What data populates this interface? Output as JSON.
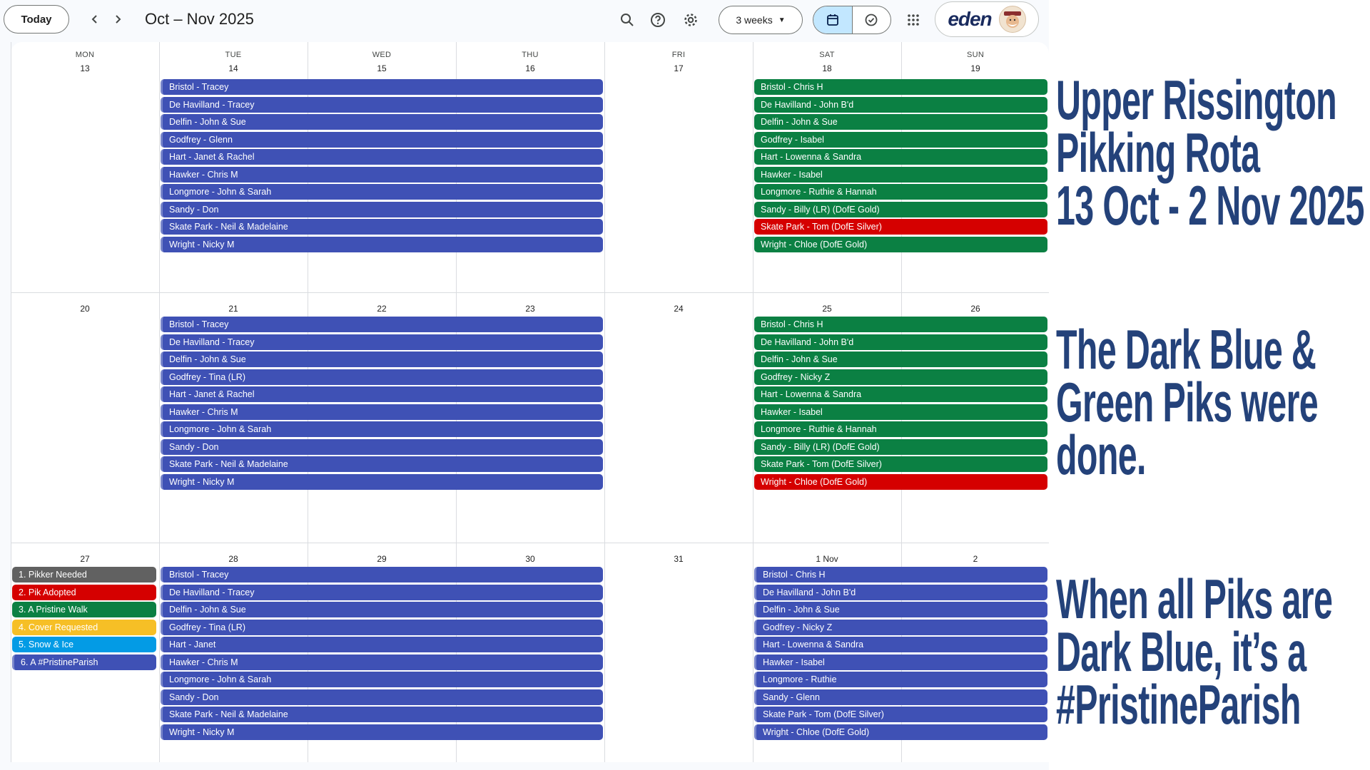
{
  "toolbar": {
    "today": "Today",
    "prev": "‹",
    "next": "›",
    "range": "Oct – Nov 2025",
    "view": "3 weeks",
    "account_logo": "eden"
  },
  "icons": [
    "search-icon",
    "help-icon",
    "settings-icon",
    "calendar-icon",
    "tasks-icon",
    "apps-icon",
    "chevron-left-icon",
    "chevron-right-icon"
  ],
  "colors": {
    "dark_blue": "#3f51b5",
    "green": "#0b8043",
    "red": "#d50000",
    "grey": "#616161",
    "yellow": "#f6bf26",
    "cyan": "#039be5",
    "headline": "#24427a"
  },
  "calendar": {
    "weekdays": [
      "MON",
      "TUE",
      "WED",
      "THU",
      "FRI",
      "SAT",
      "SUN"
    ],
    "weeks": [
      {
        "days": [
          "13",
          "14",
          "15",
          "16",
          "17",
          "18",
          "19"
        ],
        "weekday_events": [
          {
            "text": "Bristol - Tracey",
            "color": "blue"
          },
          {
            "text": "De Havilland - Tracey",
            "color": "blue"
          },
          {
            "text": "Delfin - John & Sue",
            "color": "blue"
          },
          {
            "text": "Godfrey - Glenn",
            "color": "blue"
          },
          {
            "text": "Hart - Janet & Rachel",
            "color": "blue"
          },
          {
            "text": "Hawker - Chris M",
            "color": "blue"
          },
          {
            "text": "Longmore - John & Sarah",
            "color": "blue"
          },
          {
            "text": "Sandy - Don",
            "color": "blue"
          },
          {
            "text": "Skate Park - Neil & Madelaine",
            "color": "blue"
          },
          {
            "text": "Wright - Nicky M",
            "color": "blue"
          }
        ],
        "weekend_events": [
          {
            "text": "Bristol - Chris H",
            "color": "green"
          },
          {
            "text": "De Havilland - John B'd",
            "color": "green"
          },
          {
            "text": "Delfin - John & Sue",
            "color": "green"
          },
          {
            "text": "Godfrey - Isabel",
            "color": "green"
          },
          {
            "text": "Hart - Lowenna & Sandra",
            "color": "green"
          },
          {
            "text": "Hawker - Isabel",
            "color": "green"
          },
          {
            "text": "Longmore - Ruthie & Hannah",
            "color": "green"
          },
          {
            "text": "Sandy - Billy (LR) (DofE Gold)",
            "color": "green"
          },
          {
            "text": "Skate Park - Tom (DofE Silver)",
            "color": "red"
          },
          {
            "text": "Wright - Chloe (DofE Gold)",
            "color": "green"
          }
        ],
        "monday_events": []
      },
      {
        "days": [
          "20",
          "21",
          "22",
          "23",
          "24",
          "25",
          "26"
        ],
        "weekday_events": [
          {
            "text": "Bristol - Tracey",
            "color": "blue"
          },
          {
            "text": "De Havilland - Tracey",
            "color": "blue"
          },
          {
            "text": "Delfin - John & Sue",
            "color": "blue"
          },
          {
            "text": "Godfrey - Tina (LR)",
            "color": "blue"
          },
          {
            "text": "Hart - Janet & Rachel",
            "color": "blue"
          },
          {
            "text": "Hawker - Chris M",
            "color": "blue"
          },
          {
            "text": "Longmore - John & Sarah",
            "color": "blue"
          },
          {
            "text": "Sandy - Don",
            "color": "blue"
          },
          {
            "text": "Skate Park - Neil & Madelaine",
            "color": "blue"
          },
          {
            "text": "Wright - Nicky M",
            "color": "blue"
          }
        ],
        "weekend_events": [
          {
            "text": "Bristol - Chris H",
            "color": "green"
          },
          {
            "text": "De Havilland - John B'd",
            "color": "green"
          },
          {
            "text": "Delfin - John & Sue",
            "color": "green"
          },
          {
            "text": "Godfrey - Nicky Z",
            "color": "green"
          },
          {
            "text": "Hart - Lowenna & Sandra",
            "color": "green"
          },
          {
            "text": "Hawker - Isabel",
            "color": "green"
          },
          {
            "text": "Longmore - Ruthie & Hannah",
            "color": "green"
          },
          {
            "text": "Sandy - Billy (LR) (DofE Gold)",
            "color": "green"
          },
          {
            "text": "Skate Park - Tom (DofE Silver)",
            "color": "green"
          },
          {
            "text": "Wright - Chloe (DofE Gold)",
            "color": "red"
          }
        ],
        "monday_events": []
      },
      {
        "days": [
          "27",
          "28",
          "29",
          "30",
          "31",
          "1 Nov",
          "2"
        ],
        "weekday_events": [
          {
            "text": "Bristol - Tracey",
            "color": "blue"
          },
          {
            "text": "De Havilland - Tracey",
            "color": "blue"
          },
          {
            "text": "Delfin - John & Sue",
            "color": "blue"
          },
          {
            "text": "Godfrey - Tina (LR)",
            "color": "blue"
          },
          {
            "text": "Hart - Janet",
            "color": "blue"
          },
          {
            "text": "Hawker - Chris M",
            "color": "blue"
          },
          {
            "text": "Longmore - John & Sarah",
            "color": "blue"
          },
          {
            "text": "Sandy - Don",
            "color": "blue"
          },
          {
            "text": "Skate Park - Neil & Madelaine",
            "color": "blue"
          },
          {
            "text": "Wright - Nicky M",
            "color": "blue"
          }
        ],
        "weekend_events": [
          {
            "text": "Bristol - Chris H",
            "color": "blue"
          },
          {
            "text": "De Havilland - John B'd",
            "color": "blue"
          },
          {
            "text": "Delfin - John & Sue",
            "color": "blue"
          },
          {
            "text": "Godfrey - Nicky Z",
            "color": "blue"
          },
          {
            "text": "Hart - Lowenna & Sandra",
            "color": "blue"
          },
          {
            "text": "Hawker - Isabel",
            "color": "blue"
          },
          {
            "text": "Longmore - Ruthie",
            "color": "blue"
          },
          {
            "text": "Sandy - Glenn",
            "color": "blue"
          },
          {
            "text": "Skate Park - Tom (DofE Silver)",
            "color": "blue"
          },
          {
            "text": "Wright - Chloe (DofE Gold)",
            "color": "blue"
          }
        ],
        "monday_events": [
          {
            "text": "1. Pikker Needed",
            "color": "grey"
          },
          {
            "text": "2. Pik Adopted",
            "color": "red"
          },
          {
            "text": "3. A Pristine Walk",
            "color": "green"
          },
          {
            "text": "4. Cover Requested",
            "color": "yellow"
          },
          {
            "text": "5. Snow & Ice",
            "color": "cyan"
          },
          {
            "text": "6. A #PristineParish",
            "color": "blue"
          }
        ]
      }
    ]
  },
  "side_text": {
    "block1": [
      "Upper Rissington",
      "Pikking Rota",
      "13 Oct - 2 Nov 2025"
    ],
    "block2": [
      "The Dark Blue &",
      "Green Piks were",
      "done."
    ],
    "block3": [
      "When all Piks are",
      "Dark Blue, it’s a",
      "#PristineParish"
    ]
  }
}
